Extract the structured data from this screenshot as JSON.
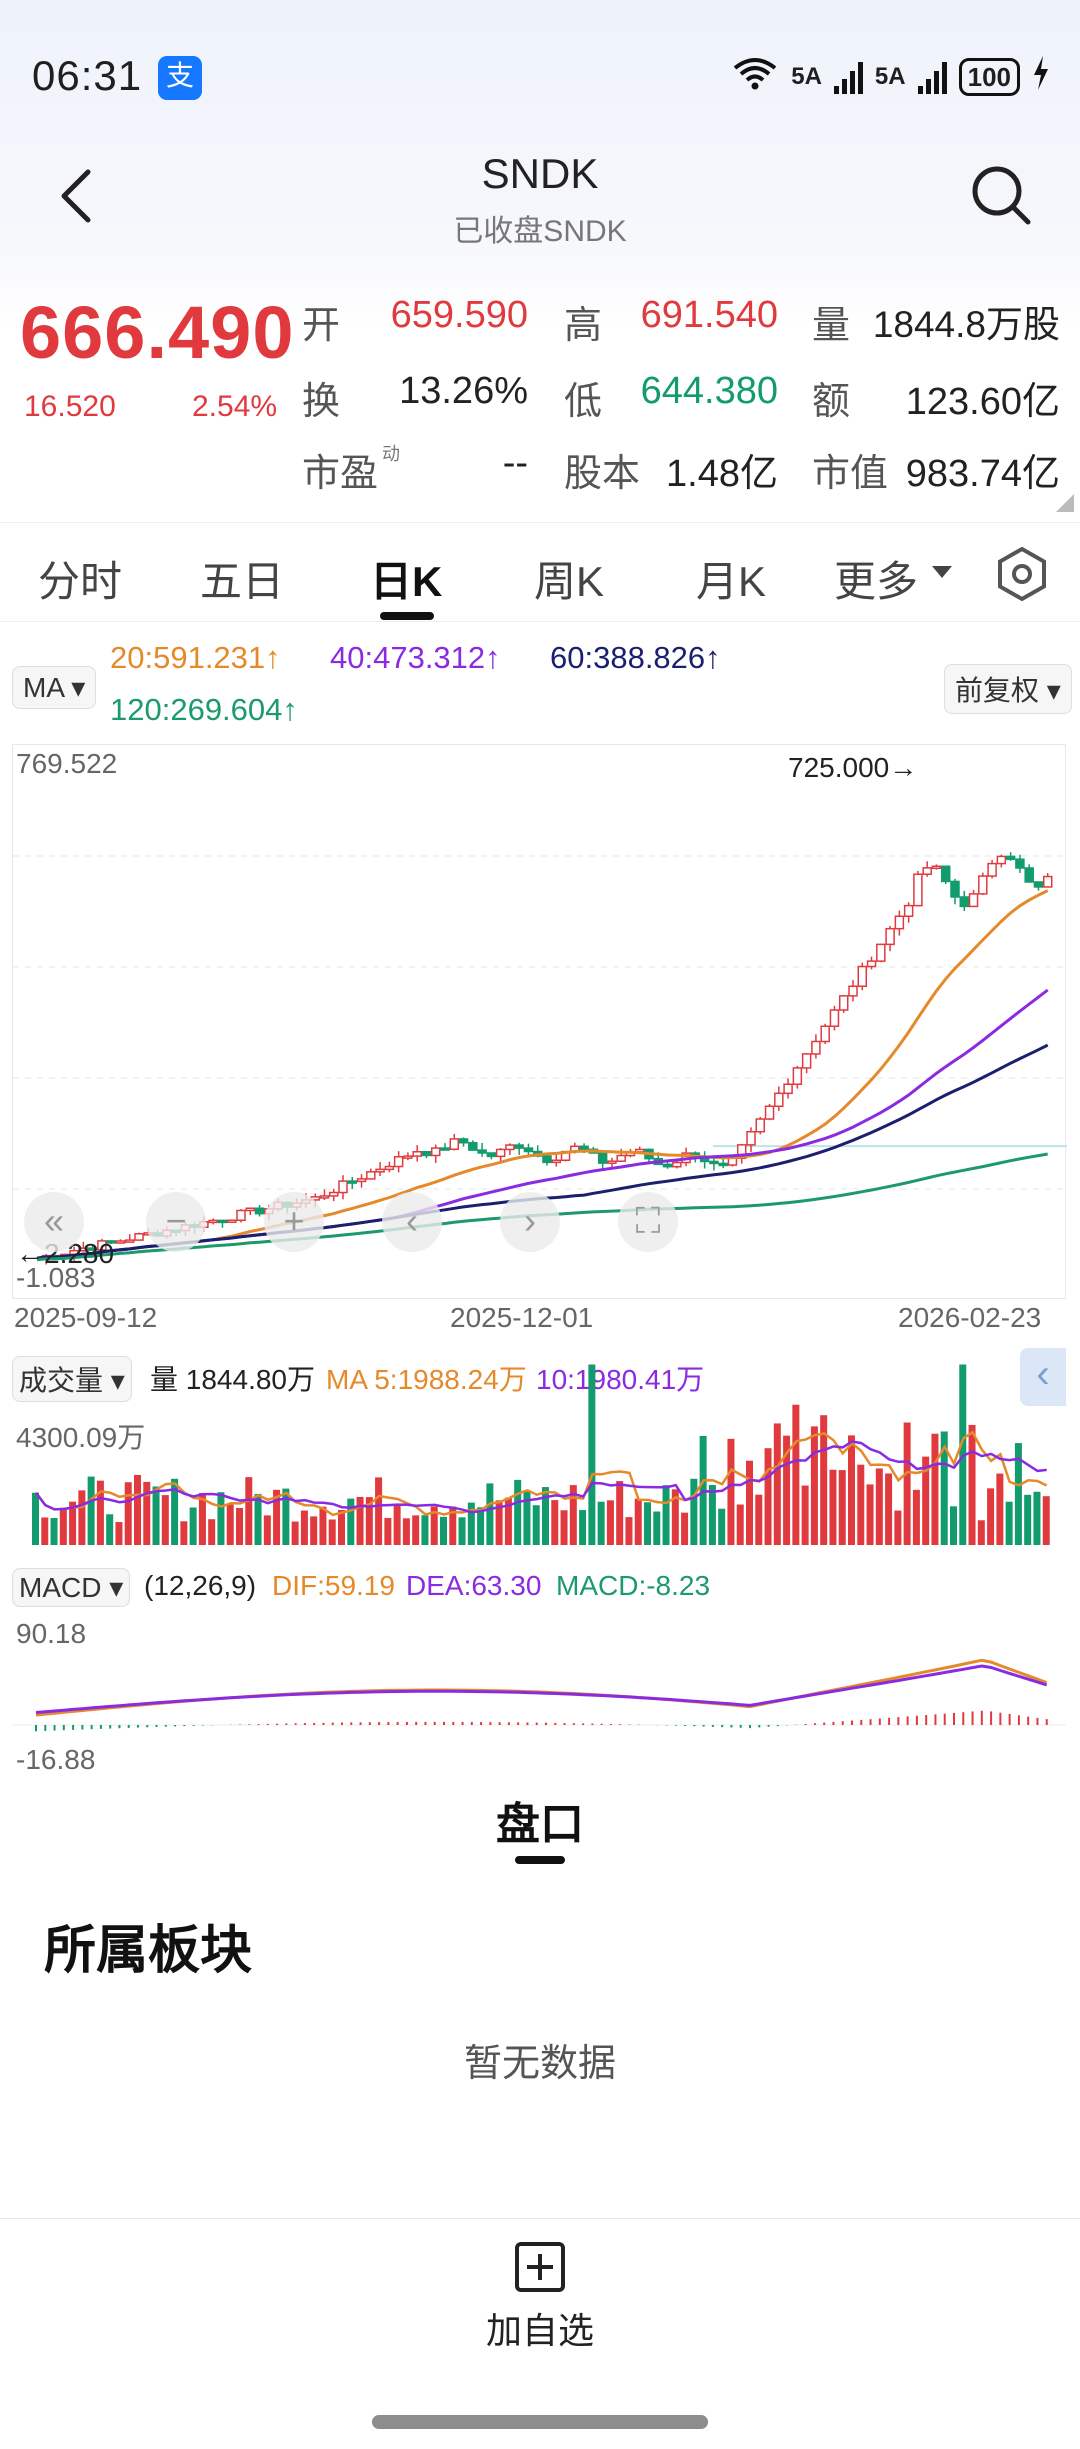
{
  "status_bar": {
    "time": "06:31",
    "app_badge": "支",
    "network_1": "5A",
    "network_2": "5A",
    "battery": "100"
  },
  "header": {
    "title": "SNDK",
    "subtitle": "已收盘SNDK"
  },
  "quote": {
    "price": "666.490",
    "change": "16.520",
    "change_pct": "2.54%",
    "open_label": "开",
    "open": "659.590",
    "high_label": "高",
    "high": "691.540",
    "volume_label": "量",
    "volume": "1844.8万股",
    "turnover_label": "换",
    "turnover": "13.26%",
    "low_label": "低",
    "low": "644.380",
    "amount_label": "额",
    "amount": "123.60亿",
    "pe_label": "市盈",
    "pe_sup": "动",
    "pe": "--",
    "shares_label": "股本",
    "shares": "1.48亿",
    "mktcap_label": "市值",
    "mktcap": "983.74亿"
  },
  "tabs": [
    {
      "label": "分时"
    },
    {
      "label": "五日"
    },
    {
      "label": "日K"
    },
    {
      "label": "周K"
    },
    {
      "label": "月K"
    },
    {
      "label": "更多"
    }
  ],
  "ma_row": {
    "selector": "MA",
    "ma20": "20:591.231↑",
    "ma40": "40:473.312↑",
    "ma60": "60:388.826↑",
    "ma120": "120:269.604↑",
    "adjust": "前复权"
  },
  "kchart": {
    "y_top": "769.522",
    "y_bottom": "-1.083",
    "high_marker": "725.000→",
    "low_marker": "←2.280",
    "dates": [
      "2025-09-12",
      "2025-12-01",
      "2026-02-23"
    ]
  },
  "volume": {
    "selector": "成交量",
    "vol": "量 1844.80万",
    "ma5": "MA 5:1988.24万",
    "ma10": "10:1980.41万",
    "top": "4300.09万"
  },
  "macd": {
    "selector": "MACD",
    "params": "(12,26,9)",
    "dif": "DIF:59.19",
    "dea": "DEA:63.30",
    "macd": "MACD:-8.23",
    "top": "90.18",
    "bottom": "-16.88"
  },
  "section": {
    "tab": "盘口",
    "sector_title": "所属板块",
    "empty": "暂无数据"
  },
  "bottom": {
    "add_label": "加自选"
  },
  "colors": {
    "up": "#e03a3e",
    "down": "#129b6c",
    "ma20": "#e58a2b",
    "ma40": "#8a2be2",
    "ma60": "#1a1f6e",
    "ma120": "#1d9a6c"
  }
}
